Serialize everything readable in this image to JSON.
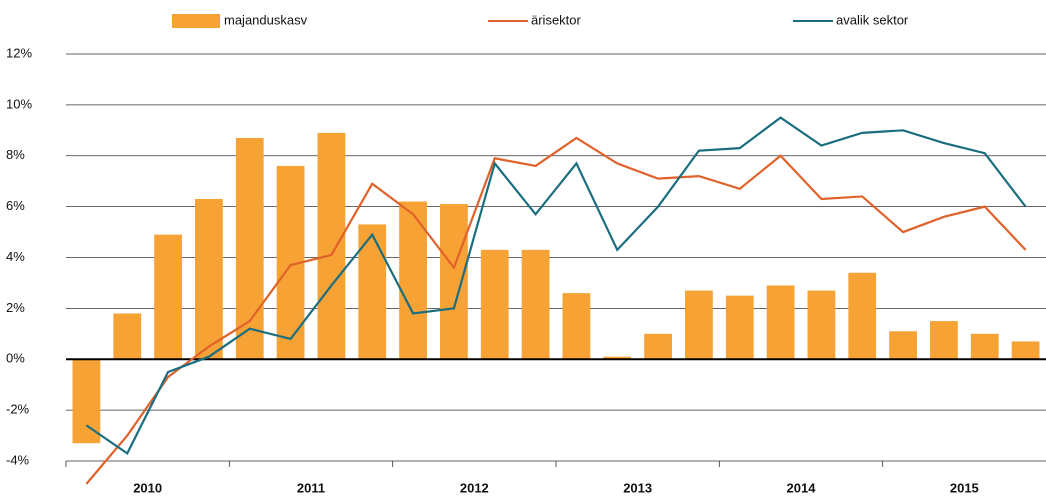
{
  "chart_data": {
    "type": "bar_line",
    "categories": [
      null,
      null,
      null,
      null,
      null,
      null,
      null,
      null,
      null,
      null,
      null,
      null,
      null,
      null,
      null,
      null,
      null,
      null,
      null,
      null,
      null,
      null,
      null,
      null
    ],
    "years": [
      "2010",
      "2011",
      "2012",
      "2013",
      "2014",
      "2015"
    ],
    "series": [
      {
        "name": "majanduskasv",
        "type": "bar",
        "color": "#f7a234",
        "values": [
          -3.3,
          1.8,
          4.9,
          6.3,
          8.7,
          7.6,
          8.9,
          5.3,
          6.2,
          6.1,
          4.3,
          4.3,
          2.6,
          0.1,
          1.0,
          2.7,
          2.5,
          2.9,
          2.7,
          3.4,
          1.1,
          1.5,
          1.0,
          0.7
        ]
      },
      {
        "name": "ärisektor",
        "type": "line",
        "color": "#e0622a",
        "values": [
          -4.9,
          -3.0,
          -0.7,
          0.5,
          1.5,
          3.7,
          4.1,
          6.9,
          5.7,
          3.6,
          7.9,
          7.6,
          8.7,
          7.7,
          7.1,
          7.2,
          6.7,
          8.0,
          6.3,
          6.4,
          5.0,
          5.6,
          6.0,
          4.3
        ]
      },
      {
        "name": "avalik sektor",
        "type": "line",
        "color": "#1a6e80",
        "values": [
          -2.6,
          -3.7,
          -0.5,
          0.1,
          1.2,
          0.8,
          2.9,
          4.9,
          1.8,
          2.0,
          7.7,
          5.7,
          7.7,
          4.3,
          6.0,
          8.2,
          8.3,
          9.5,
          8.4,
          8.9,
          9.0,
          8.5,
          8.1,
          6.0
        ]
      }
    ],
    "ylim": [
      -4,
      12
    ],
    "yticks": [
      {
        "value": -4,
        "label": "-4%"
      },
      {
        "value": -2,
        "label": "-2%"
      },
      {
        "value": 0,
        "label": "0%"
      },
      {
        "value": 2,
        "label": "2%"
      },
      {
        "value": 4,
        "label": "4%"
      },
      {
        "value": 6,
        "label": "6%"
      },
      {
        "value": 8,
        "label": "8%"
      },
      {
        "value": 10,
        "label": "10%"
      },
      {
        "value": 12,
        "label": "12%"
      }
    ],
    "grid": true
  }
}
